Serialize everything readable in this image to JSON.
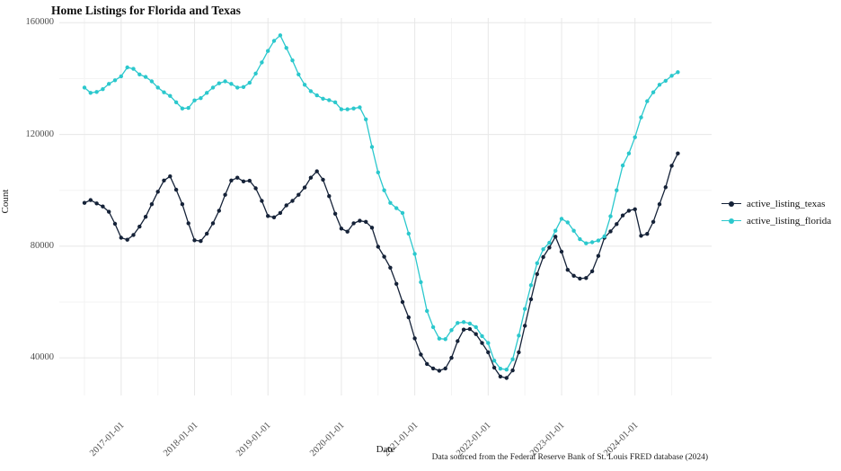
{
  "title": "Home Listings for Florida and Texas",
  "chart_data": {
    "type": "line",
    "title": "Home Listings for Florida and Texas",
    "xlabel": "Date",
    "ylabel": "Count",
    "caption": "Data sourced from the Federal Reserve Bank of St. Louis FRED database (2024)",
    "legend_position": "right",
    "grid": true,
    "background": "#FFFFFF",
    "grid_major_color": "#E7E7E7",
    "grid_minor_color": "#F3F3F3",
    "axis_text_color": "#4D4D4D",
    "ylim": [
      26000,
      162000
    ],
    "y_ticks": [
      40000,
      80000,
      120000,
      160000
    ],
    "y_tick_labels": [
      "40000",
      "80000",
      "120000",
      "160000"
    ],
    "y_minor_ticks": [
      60000,
      100000,
      140000
    ],
    "x_major_tick_labels": [
      "2017-01-01",
      "2018-01-01",
      "2019-01-01",
      "2020-01-01",
      "2021-01-01",
      "2022-01-01",
      "2023-01-01",
      "2024-01-01"
    ],
    "x_minor_tick_months": [
      "2016-07",
      "2017-07",
      "2018-07",
      "2019-07",
      "2020-07",
      "2021-07",
      "2022-07",
      "2023-07",
      "2024-07"
    ],
    "x_months": [
      "2016-07",
      "2016-08",
      "2016-09",
      "2016-10",
      "2016-11",
      "2016-12",
      "2017-01",
      "2017-02",
      "2017-03",
      "2017-04",
      "2017-05",
      "2017-06",
      "2017-07",
      "2017-08",
      "2017-09",
      "2017-10",
      "2017-11",
      "2017-12",
      "2018-01",
      "2018-02",
      "2018-03",
      "2018-04",
      "2018-05",
      "2018-06",
      "2018-07",
      "2018-08",
      "2018-09",
      "2018-10",
      "2018-11",
      "2018-12",
      "2019-01",
      "2019-02",
      "2019-03",
      "2019-04",
      "2019-05",
      "2019-06",
      "2019-07",
      "2019-08",
      "2019-09",
      "2019-10",
      "2019-11",
      "2019-12",
      "2020-01",
      "2020-02",
      "2020-03",
      "2020-04",
      "2020-05",
      "2020-06",
      "2020-07",
      "2020-08",
      "2020-09",
      "2020-10",
      "2020-11",
      "2020-12",
      "2021-01",
      "2021-02",
      "2021-03",
      "2021-04",
      "2021-05",
      "2021-06",
      "2021-07",
      "2021-08",
      "2021-09",
      "2021-10",
      "2021-11",
      "2021-12",
      "2022-01",
      "2022-02",
      "2022-03",
      "2022-04",
      "2022-05",
      "2022-06",
      "2022-07",
      "2022-08",
      "2022-09",
      "2022-10",
      "2022-11",
      "2022-12",
      "2023-01",
      "2023-02",
      "2023-03",
      "2023-04",
      "2023-05",
      "2023-06",
      "2023-07",
      "2023-08",
      "2023-09",
      "2023-10",
      "2023-11",
      "2023-12",
      "2024-01",
      "2024-02",
      "2024-03",
      "2024-04",
      "2024-05",
      "2024-06",
      "2024-07",
      "2024-08"
    ],
    "series": [
      {
        "name": "active_listing_texas",
        "color": "#152238",
        "values": [
          95500,
          96500,
          95300,
          94200,
          92300,
          88000,
          83000,
          82300,
          84000,
          87000,
          90500,
          95000,
          99500,
          103500,
          105000,
          100200,
          95000,
          88200,
          82100,
          81800,
          84500,
          88200,
          92700,
          98400,
          103500,
          104500,
          103200,
          103400,
          100700,
          96200,
          90800,
          90300,
          91900,
          94600,
          96200,
          98400,
          101000,
          104500,
          106800,
          103800,
          97900,
          91600,
          86300,
          85200,
          88200,
          89100,
          88700,
          86600,
          79800,
          76200,
          72300,
          66500,
          60000,
          54500,
          47000,
          41200,
          37800,
          36200,
          35400,
          36200,
          40000,
          46000,
          50100,
          50300,
          48500,
          45300,
          42000,
          36500,
          33300,
          32800,
          35500,
          42000,
          51500,
          61000,
          70000,
          76100,
          79500,
          83400,
          78000,
          71500,
          69400,
          68400,
          68600,
          71000,
          76500,
          83000,
          85300,
          87900,
          91000,
          92700,
          93200,
          83700,
          84400,
          88700,
          95000,
          101100,
          108800,
          113200
        ]
      },
      {
        "name": "active_listing_florida",
        "color": "#2BC8CD",
        "values": [
          136800,
          134900,
          135200,
          136200,
          138100,
          139400,
          140800,
          144000,
          143500,
          141500,
          140600,
          139000,
          136800,
          135100,
          133800,
          131500,
          129300,
          129500,
          132200,
          133000,
          134900,
          136800,
          138300,
          139000,
          138100,
          136800,
          137000,
          138500,
          141800,
          145800,
          149900,
          153500,
          155500,
          151000,
          146500,
          141500,
          137800,
          135500,
          134000,
          132800,
          132300,
          131500,
          129000,
          129000,
          129300,
          129700,
          125400,
          115500,
          106400,
          100000,
          95500,
          93600,
          91900,
          84500,
          77200,
          67100,
          56800,
          51000,
          46900,
          46700,
          49900,
          52500,
          52800,
          52300,
          51000,
          47800,
          45300,
          39000,
          36100,
          35800,
          39500,
          48000,
          57500,
          66000,
          73900,
          78900,
          81200,
          85500,
          89800,
          88500,
          85500,
          82500,
          81000,
          81400,
          82000,
          83500,
          90700,
          100000,
          108900,
          113200,
          119000,
          126100,
          131900,
          135100,
          137800,
          139200,
          141000,
          142300
        ]
      }
    ]
  }
}
